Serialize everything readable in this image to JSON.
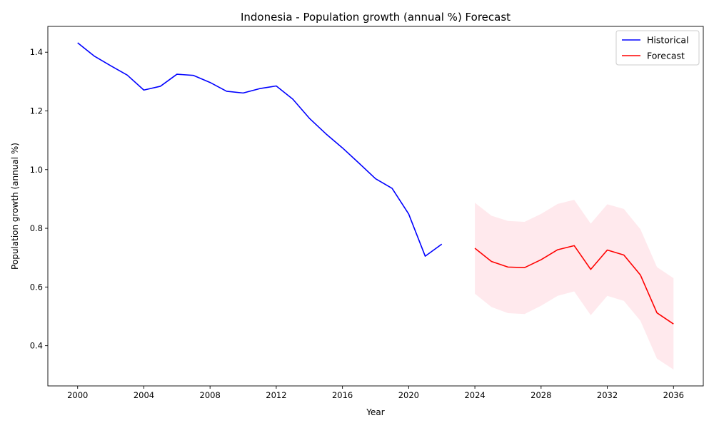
{
  "chart_data": {
    "type": "line",
    "title": "Indonesia - Population growth (annual %) Forecast",
    "xlabel": "Year",
    "ylabel": "Population growth (annual %)",
    "xlim": [
      1998.2,
      2037.8
    ],
    "ylim": [
      0.263,
      1.488
    ],
    "xticks": [
      2000,
      2004,
      2008,
      2012,
      2016,
      2020,
      2024,
      2028,
      2032,
      2036
    ],
    "yticks": [
      0.4,
      0.6,
      0.8,
      1.0,
      1.2,
      1.4
    ],
    "ytick_labels": [
      "0.4",
      "0.6",
      "0.8",
      "1.0",
      "1.2",
      "1.4"
    ],
    "legend_position": "top-right",
    "grid": false,
    "series": [
      {
        "name": "Historical",
        "color": "#0000ff",
        "x": [
          2000,
          2001,
          2002,
          2003,
          2004,
          2005,
          2006,
          2007,
          2008,
          2009,
          2010,
          2011,
          2012,
          2013,
          2014,
          2015,
          2016,
          2017,
          2018,
          2019,
          2020,
          2021,
          2022
        ],
        "y": [
          1.432,
          1.387,
          1.354,
          1.322,
          1.271,
          1.284,
          1.325,
          1.321,
          1.297,
          1.267,
          1.261,
          1.276,
          1.285,
          1.24,
          1.175,
          1.122,
          1.074,
          1.022,
          0.969,
          0.936,
          0.849,
          0.705,
          0.746
        ]
      },
      {
        "name": "Forecast",
        "color": "#ff0000",
        "x": [
          2024,
          2025,
          2026,
          2027,
          2028,
          2029,
          2030,
          2031,
          2032,
          2033,
          2034,
          2035,
          2036
        ],
        "y": [
          0.732,
          0.687,
          0.668,
          0.666,
          0.693,
          0.727,
          0.741,
          0.66,
          0.726,
          0.709,
          0.641,
          0.512,
          0.474
        ]
      }
    ],
    "confidence_band": {
      "color": "#ffc0cb",
      "opacity": 0.35,
      "x": [
        2024,
        2025,
        2026,
        2027,
        2028,
        2029,
        2030,
        2031,
        2032,
        2033,
        2034,
        2035,
        2036
      ],
      "lower": [
        0.577,
        0.532,
        0.511,
        0.508,
        0.536,
        0.57,
        0.585,
        0.504,
        0.57,
        0.553,
        0.485,
        0.356,
        0.319
      ],
      "upper": [
        0.887,
        0.843,
        0.825,
        0.822,
        0.849,
        0.883,
        0.897,
        0.816,
        0.882,
        0.866,
        0.797,
        0.668,
        0.63
      ]
    }
  }
}
